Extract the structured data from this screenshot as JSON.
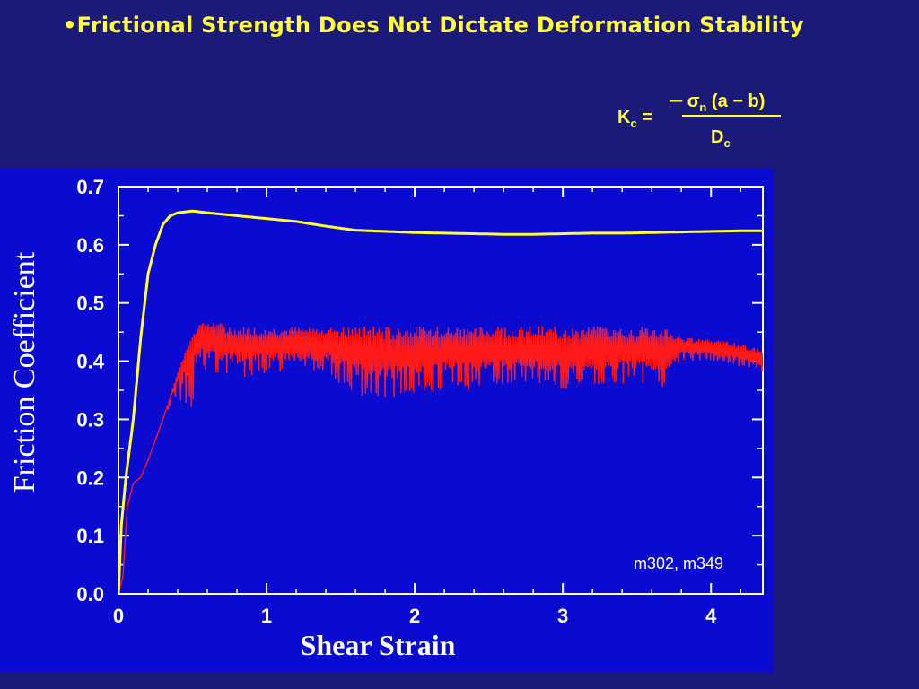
{
  "slide": {
    "title": "•Frictional Strength Does Not Dictate Deformation Stability",
    "formula": {
      "lhs_main": "K",
      "lhs_sub": "c",
      "equals": "=",
      "num_prefix": "─ ",
      "sigma": "σ",
      "sigma_sub": "n",
      "num_rest": " (a − b)",
      "den_main": "D",
      "den_sub": "c"
    }
  },
  "colors": {
    "background": "#1b1a78",
    "title": "#ffff33",
    "plot_background": "#0a0ad0",
    "series_yellow": "#ffff33",
    "series_red": "#ff1a1a"
  },
  "chart_data": {
    "type": "line",
    "title": "",
    "xlabel": "Shear Strain",
    "ylabel": "Friction Coefficient",
    "xlim": [
      0,
      4.35
    ],
    "ylim": [
      0,
      0.7
    ],
    "xticks": [
      "0",
      "1",
      "2",
      "3",
      "4"
    ],
    "yticks": [
      "0.0",
      "0.1",
      "0.2",
      "0.3",
      "0.4",
      "0.5",
      "0.6",
      "0.7"
    ],
    "annotation": "m302, m349",
    "grid": false,
    "series": [
      {
        "color": "yellow",
        "x": [
          0,
          0.02,
          0.05,
          0.1,
          0.15,
          0.2,
          0.25,
          0.3,
          0.35,
          0.4,
          0.5,
          0.6,
          0.8,
          1.0,
          1.2,
          1.4,
          1.6,
          1.8,
          2.0,
          2.2,
          2.4,
          2.6,
          2.8,
          3.0,
          3.2,
          3.4,
          3.6,
          3.8,
          4.0,
          4.2,
          4.35
        ],
        "y": [
          0,
          0.12,
          0.2,
          0.3,
          0.44,
          0.55,
          0.6,
          0.635,
          0.65,
          0.655,
          0.658,
          0.655,
          0.65,
          0.645,
          0.64,
          0.632,
          0.625,
          0.623,
          0.621,
          0.62,
          0.619,
          0.618,
          0.618,
          0.619,
          0.62,
          0.62,
          0.621,
          0.622,
          0.623,
          0.624,
          0.624
        ]
      },
      {
        "color": "red",
        "x": [
          0,
          0.03,
          0.06,
          0.1,
          0.15,
          0.2,
          0.3,
          0.4,
          0.5,
          0.55,
          0.6,
          0.8,
          1.0,
          1.2,
          1.4,
          1.6,
          1.8,
          2.0,
          2.2,
          2.4,
          2.6,
          2.8,
          3.0,
          3.2,
          3.4,
          3.6,
          3.7,
          3.8,
          4.0,
          4.2,
          4.35
        ],
        "y": [
          0,
          0.03,
          0.15,
          0.19,
          0.2,
          0.23,
          0.3,
          0.38,
          0.42,
          0.44,
          0.43,
          0.42,
          0.42,
          0.42,
          0.42,
          0.41,
          0.4,
          0.41,
          0.41,
          0.41,
          0.41,
          0.41,
          0.4,
          0.41,
          0.41,
          0.41,
          0.41,
          0.42,
          0.42,
          0.41,
          0.4
        ],
        "oscillation_min": [
          0,
          0.03,
          0.15,
          0.19,
          0.2,
          0.23,
          0.3,
          0.34,
          0.3,
          0.4,
          0.38,
          0.37,
          0.38,
          0.38,
          0.38,
          0.34,
          0.33,
          0.34,
          0.35,
          0.35,
          0.36,
          0.36,
          0.35,
          0.36,
          0.36,
          0.36,
          0.35,
          0.4,
          0.4,
          0.39,
          0.38
        ],
        "oscillation_max": [
          0,
          0.03,
          0.15,
          0.19,
          0.2,
          0.23,
          0.3,
          0.38,
          0.45,
          0.47,
          0.47,
          0.46,
          0.46,
          0.46,
          0.46,
          0.46,
          0.46,
          0.46,
          0.46,
          0.46,
          0.46,
          0.46,
          0.46,
          0.46,
          0.46,
          0.46,
          0.46,
          0.44,
          0.44,
          0.43,
          0.42
        ]
      }
    ]
  }
}
